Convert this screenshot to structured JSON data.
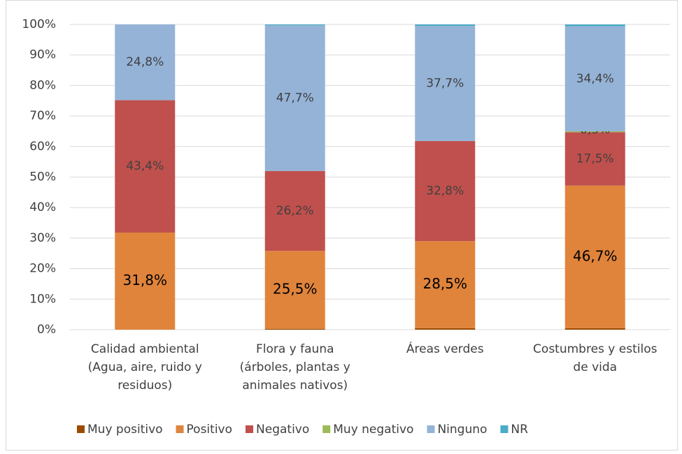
{
  "chart_data": {
    "type": "stacked_bar",
    "categories": [
      [
        "Calidad ambiental",
        "(Agua, aire, ruido y",
        "residuos)"
      ],
      [
        "Flora y fauna",
        "(árboles, plantas y",
        "animales nativos)"
      ],
      [
        "Áreas verdes"
      ],
      [
        "Costumbres y estilos",
        "de vida"
      ]
    ],
    "series": [
      {
        "name": "Muy positivo",
        "color": "#9c4a00",
        "values": [
          0,
          0.3,
          0.5,
          0.5
        ],
        "value_labels": [
          null,
          null,
          null,
          null
        ]
      },
      {
        "name": "Positivo",
        "color": "#e0843c",
        "values": [
          31.8,
          25.5,
          28.5,
          46.7
        ],
        "value_labels": [
          "31,8%",
          "25,5%",
          "28,5%",
          "46,7%"
        ]
      },
      {
        "name": "Negativo",
        "color": "#c0504d",
        "values": [
          43.4,
          26.2,
          32.8,
          17.5
        ],
        "value_labels": [
          "43,4%",
          "26,2%",
          "32,8%",
          "17,5%"
        ]
      },
      {
        "name": "Muy negativo",
        "color": "#9bbb59",
        "values": [
          0,
          0,
          0,
          0.3
        ],
        "value_labels": [
          null,
          null,
          null,
          "0,3%"
        ]
      },
      {
        "name": "Ninguno",
        "color": "#95b3d7",
        "values": [
          24.8,
          47.7,
          37.7,
          34.4
        ],
        "value_labels": [
          "24,8%",
          "47,7%",
          "37,7%",
          "34,4%"
        ]
      },
      {
        "name": "NR",
        "color": "#4bacc6",
        "values": [
          0,
          0.3,
          0.5,
          0.6
        ],
        "value_labels": [
          null,
          null,
          null,
          null
        ]
      }
    ],
    "ylim": [
      0,
      100
    ],
    "yticks": [
      {
        "value": 0,
        "label": "0%"
      },
      {
        "value": 10,
        "label": "10%"
      },
      {
        "value": 20,
        "label": "20%"
      },
      {
        "value": 30,
        "label": "30%"
      },
      {
        "value": 40,
        "label": "40%"
      },
      {
        "value": 50,
        "label": "50%"
      },
      {
        "value": 60,
        "label": "60%"
      },
      {
        "value": 70,
        "label": "70%"
      },
      {
        "value": 80,
        "label": "80%"
      },
      {
        "value": 90,
        "label": "90%"
      },
      {
        "value": 100,
        "label": "100%"
      }
    ],
    "grid": true,
    "legend": "bottom"
  }
}
